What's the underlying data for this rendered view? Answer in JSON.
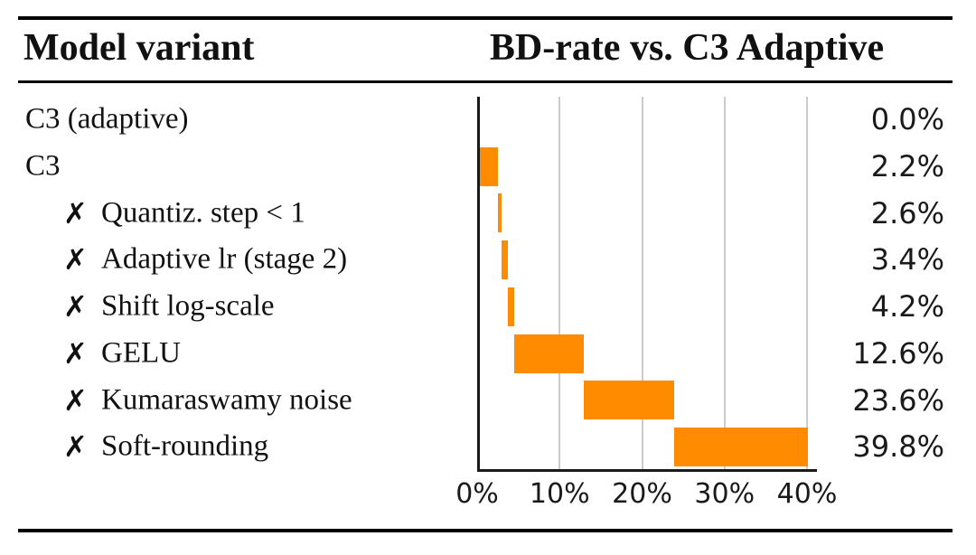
{
  "table": {
    "header": {
      "left": "Model variant",
      "right": "BD-rate vs. C3 Adaptive"
    },
    "cross_mark": "✗",
    "rows": [
      {
        "label": "C3 (adaptive)",
        "ablated": false,
        "value": "0.0%"
      },
      {
        "label": "C3",
        "ablated": false,
        "value": "2.2%"
      },
      {
        "label": "Quantiz. step < 1",
        "ablated": true,
        "value": "2.6%"
      },
      {
        "label": "Adaptive lr (stage 2)",
        "ablated": true,
        "value": "3.4%"
      },
      {
        "label": "Shift log-scale",
        "ablated": true,
        "value": "4.2%"
      },
      {
        "label": "GELU",
        "ablated": true,
        "value": "12.6%"
      },
      {
        "label": "Kumaraswamy noise",
        "ablated": true,
        "value": "23.6%"
      },
      {
        "label": "Soft-rounding",
        "ablated": true,
        "value": "39.8%"
      }
    ]
  },
  "chart_data": {
    "type": "bar",
    "subtype": "horizontal-waterfall",
    "title": "BD-rate vs. C3 Adaptive",
    "categories": [
      "C3 (adaptive)",
      "C3",
      "Quantiz. step < 1",
      "Adaptive lr (stage 2)",
      "Shift log-scale",
      "GELU",
      "Kumaraswamy noise",
      "Soft-rounding"
    ],
    "values": [
      0.0,
      2.2,
      2.6,
      3.4,
      4.2,
      12.6,
      23.6,
      39.8
    ],
    "value_labels": [
      "0.0%",
      "2.2%",
      "2.6%",
      "3.4%",
      "4.2%",
      "12.6%",
      "23.6%",
      "39.8%"
    ],
    "segments": [
      [
        0.0,
        0.0
      ],
      [
        0.0,
        2.2
      ],
      [
        2.2,
        2.6
      ],
      [
        2.6,
        3.4
      ],
      [
        3.4,
        4.2
      ],
      [
        4.2,
        12.6
      ],
      [
        12.6,
        23.6
      ],
      [
        23.6,
        39.8
      ]
    ],
    "xlabel": "",
    "ylabel": "",
    "xlim": [
      0,
      41.2
    ],
    "xticks": {
      "values": [
        0,
        10,
        20,
        30,
        40
      ],
      "labels": [
        "0%",
        "10%",
        "20%",
        "30%",
        "40%"
      ]
    },
    "grid": "vertical",
    "legend": "none",
    "bar_color": "#ff8c00",
    "gridline_color": "#cccccc",
    "axis_color": "#1a1a1a"
  }
}
